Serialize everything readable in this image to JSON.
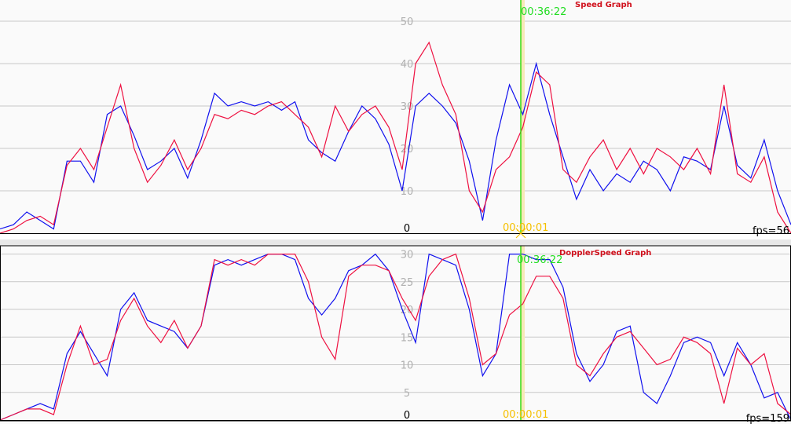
{
  "colors": {
    "series_a": "#1010ee",
    "series_b": "#ee1040",
    "cursor": "#33dd11",
    "start_marker": "#f5c000",
    "grid": "#c8c8c8",
    "background": "#fafafa"
  },
  "chart_data": [
    {
      "type": "line",
      "title": "Speed Graph",
      "ylim": [
        0,
        55
      ],
      "yticks": [
        "0",
        "10",
        "20",
        "30",
        "40",
        "50"
      ],
      "ytick_values": [
        0,
        10,
        20,
        30,
        40,
        50
      ],
      "grid": true,
      "cursor_time": "00:36:22",
      "start_time": "00:00:01",
      "fps": "fps=56",
      "series": [
        {
          "color": "#1010ee",
          "values": [
            1,
            2,
            5,
            3,
            1,
            17,
            17,
            12,
            28,
            30,
            23,
            15,
            17,
            20,
            13,
            22,
            33,
            30,
            31,
            30,
            31,
            29,
            31,
            22,
            19,
            17,
            24,
            30,
            27,
            21,
            10,
            30,
            33,
            30,
            26,
            17,
            3,
            22,
            35,
            28,
            40,
            28,
            18,
            8,
            15,
            10,
            14,
            12,
            17,
            15,
            10,
            18,
            17,
            15,
            30,
            16,
            13,
            22,
            10,
            2
          ]
        },
        {
          "color": "#ee1040",
          "values": [
            0,
            1,
            3,
            4,
            2,
            16,
            20,
            15,
            25,
            35,
            20,
            12,
            16,
            22,
            15,
            20,
            28,
            27,
            29,
            28,
            30,
            31,
            28,
            25,
            18,
            30,
            24,
            28,
            30,
            25,
            15,
            40,
            45,
            35,
            28,
            10,
            5,
            15,
            18,
            25,
            38,
            35,
            15,
            12,
            18,
            22,
            15,
            20,
            14,
            20,
            18,
            15,
            20,
            14,
            35,
            14,
            12,
            18,
            5,
            0
          ]
        }
      ]
    },
    {
      "type": "line",
      "title": "DopplerSpeed Graph",
      "ylim": [
        0,
        31.5
      ],
      "yticks": [
        "0",
        "5",
        "10",
        "15",
        "20",
        "25",
        "30"
      ],
      "ytick_values": [
        0,
        5,
        10,
        15,
        20,
        25,
        30
      ],
      "grid": true,
      "cursor_time": "00:36:22",
      "start_time": "00:00:01",
      "fps": "fps=159",
      "series": [
        {
          "color": "#1010ee",
          "values": [
            0,
            1,
            2,
            3,
            2,
            12,
            16,
            12,
            8,
            20,
            23,
            18,
            17,
            16,
            13,
            17,
            28,
            29,
            28,
            29,
            30,
            30,
            29,
            22,
            19,
            22,
            27,
            28,
            30,
            27,
            20,
            14,
            30,
            29,
            28,
            20,
            8,
            12,
            30,
            30,
            29,
            29,
            24,
            12,
            7,
            10,
            16,
            17,
            5,
            3,
            8,
            14,
            15,
            14,
            8,
            14,
            10,
            4,
            5,
            0
          ]
        },
        {
          "color": "#ee1040",
          "values": [
            0,
            1,
            2,
            2,
            1,
            10,
            17,
            10,
            11,
            18,
            22,
            17,
            14,
            18,
            13,
            17,
            29,
            28,
            29,
            28,
            30,
            30,
            30,
            25,
            15,
            11,
            26,
            28,
            28,
            27,
            22,
            18,
            26,
            29,
            30,
            22,
            10,
            12,
            19,
            21,
            26,
            26,
            22,
            10,
            8,
            12,
            15,
            16,
            13,
            10,
            11,
            15,
            14,
            12,
            3,
            13,
            10,
            12,
            3,
            1
          ]
        }
      ]
    }
  ]
}
